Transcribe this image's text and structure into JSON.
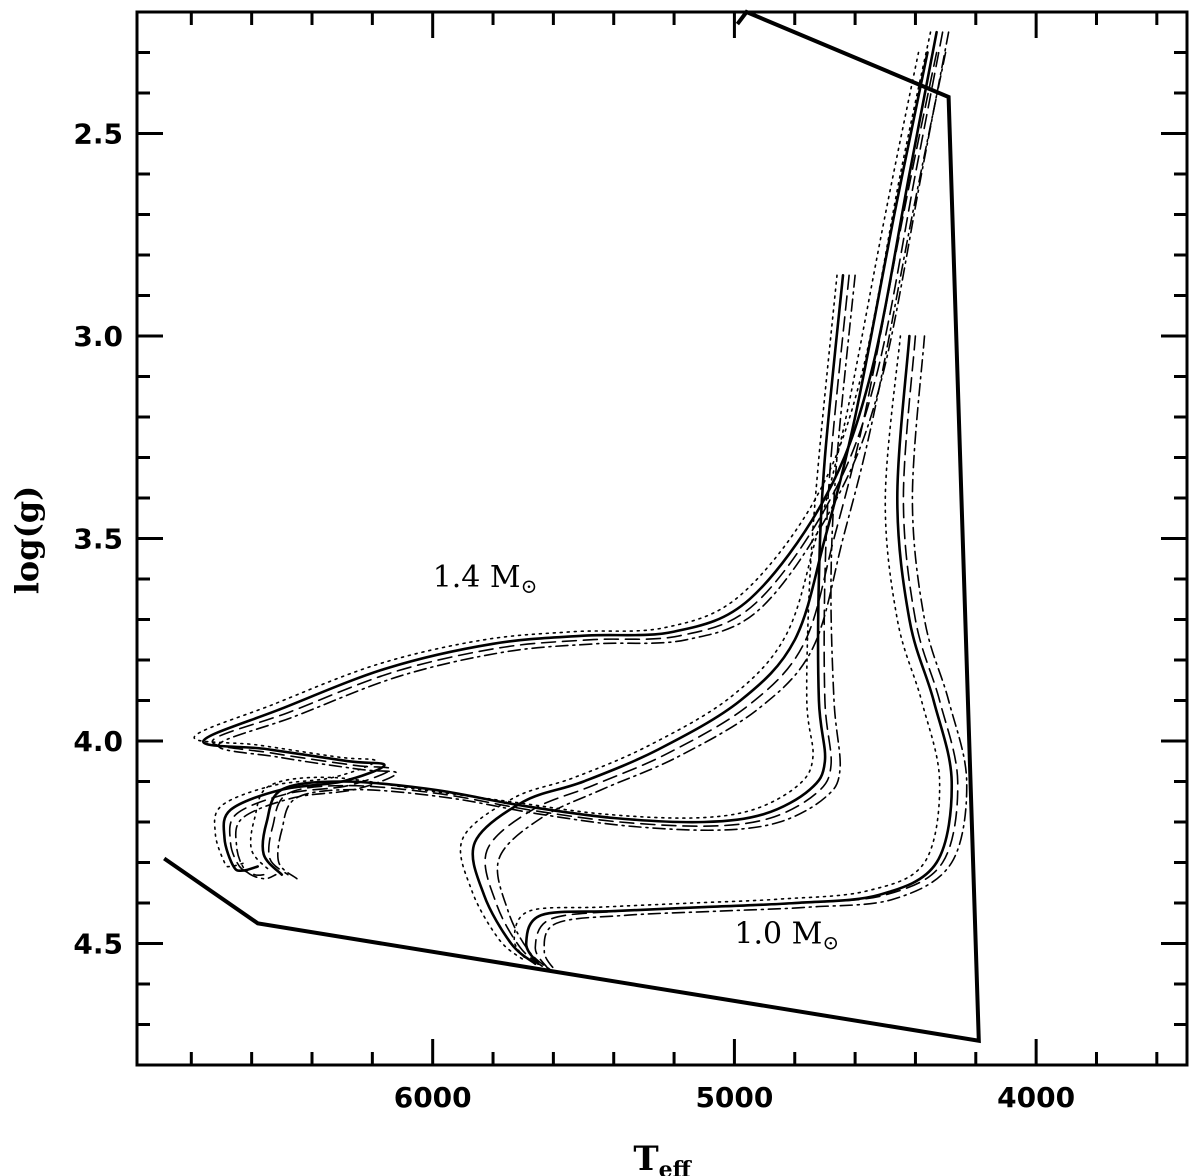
{
  "chart_data": {
    "type": "line",
    "title": "",
    "xlabel": "T",
    "xlabel_sub": "eff",
    "ylabel": "log(g)",
    "xlim": [
      6980,
      3500
    ],
    "ylim": [
      2.2,
      4.8
    ],
    "x_reversed": true,
    "y_reversed": true,
    "x_ticks": [
      6000,
      5000,
      4000
    ],
    "x_minor_step": 200,
    "y_ticks": [
      2.5,
      3.0,
      3.5,
      4.0,
      4.5
    ],
    "y_minor_step": 0.1,
    "grid": false,
    "boundary": [
      [
        6890,
        4.29
      ],
      [
        6580,
        4.45
      ],
      [
        4190,
        4.74
      ],
      [
        4290,
        2.41
      ],
      [
        4960,
        2.2
      ],
      [
        4990,
        2.23
      ]
    ],
    "annotations": [
      {
        "text": "1.4 M",
        "sub": "⊙",
        "x": 6000,
        "y": 3.62
      },
      {
        "text": "1.0 M",
        "sub": "⊙",
        "x": 5000,
        "y": 4.5
      }
    ],
    "series": [
      {
        "style": "solid",
        "points": [
          [
            4330,
            2.25
          ],
          [
            4420,
            2.6
          ],
          [
            4550,
            3.1
          ],
          [
            4700,
            3.4
          ],
          [
            4950,
            3.65
          ],
          [
            5200,
            3.73
          ],
          [
            5500,
            3.74
          ],
          [
            5800,
            3.76
          ],
          [
            6150,
            3.82
          ],
          [
            6500,
            3.92
          ],
          [
            6760,
            4.0
          ],
          [
            6550,
            4.02
          ],
          [
            6280,
            4.05
          ],
          [
            6160,
            4.06
          ],
          [
            6300,
            4.1
          ],
          [
            6500,
            4.12
          ],
          [
            6670,
            4.17
          ],
          [
            6690,
            4.24
          ],
          [
            6660,
            4.31
          ],
          [
            6630,
            4.32
          ],
          [
            6580,
            4.31
          ]
        ]
      },
      {
        "style": "dashed",
        "points": [
          [
            4310,
            2.25
          ],
          [
            4400,
            2.6
          ],
          [
            4530,
            3.1
          ],
          [
            4680,
            3.4
          ],
          [
            4930,
            3.66
          ],
          [
            5180,
            3.74
          ],
          [
            5480,
            3.75
          ],
          [
            5780,
            3.77
          ],
          [
            6130,
            3.83
          ],
          [
            6480,
            3.93
          ],
          [
            6730,
            4.0
          ],
          [
            6530,
            4.03
          ],
          [
            6260,
            4.06
          ],
          [
            6140,
            4.07
          ],
          [
            6280,
            4.11
          ],
          [
            6480,
            4.13
          ],
          [
            6650,
            4.18
          ],
          [
            6670,
            4.25
          ],
          [
            6640,
            4.31
          ],
          [
            6590,
            4.33
          ],
          [
            6560,
            4.33
          ]
        ]
      },
      {
        "style": "dotted",
        "points": [
          [
            4350,
            2.25
          ],
          [
            4450,
            2.6
          ],
          [
            4580,
            3.1
          ],
          [
            4730,
            3.4
          ],
          [
            4980,
            3.64
          ],
          [
            5230,
            3.72
          ],
          [
            5530,
            3.73
          ],
          [
            5830,
            3.75
          ],
          [
            6180,
            3.81
          ],
          [
            6530,
            3.91
          ],
          [
            6790,
            3.99
          ],
          [
            6580,
            4.01
          ],
          [
            6310,
            4.04
          ],
          [
            6190,
            4.05
          ],
          [
            6330,
            4.09
          ],
          [
            6530,
            4.11
          ],
          [
            6700,
            4.16
          ],
          [
            6720,
            4.23
          ],
          [
            6690,
            4.3
          ],
          [
            6670,
            4.31
          ],
          [
            6620,
            4.3
          ]
        ]
      },
      {
        "style": "dashdot",
        "points": [
          [
            4290,
            2.25
          ],
          [
            4380,
            2.6
          ],
          [
            4510,
            3.1
          ],
          [
            4660,
            3.4
          ],
          [
            4910,
            3.67
          ],
          [
            5160,
            3.75
          ],
          [
            5460,
            3.76
          ],
          [
            5760,
            3.78
          ],
          [
            6110,
            3.84
          ],
          [
            6460,
            3.94
          ],
          [
            6710,
            4.01
          ],
          [
            6510,
            4.04
          ],
          [
            6240,
            4.07
          ],
          [
            6120,
            4.08
          ],
          [
            6260,
            4.12
          ],
          [
            6460,
            4.14
          ],
          [
            6630,
            4.19
          ],
          [
            6650,
            4.26
          ],
          [
            6620,
            4.32
          ],
          [
            6560,
            4.34
          ],
          [
            6520,
            4.33
          ]
        ]
      },
      {
        "style": "solid",
        "points": [
          [
            4360,
            2.3
          ],
          [
            4470,
            2.7
          ],
          [
            4600,
            3.2
          ],
          [
            4700,
            3.5
          ],
          [
            4800,
            3.75
          ],
          [
            4980,
            3.9
          ],
          [
            5250,
            4.02
          ],
          [
            5500,
            4.1
          ],
          [
            5700,
            4.15
          ],
          [
            5860,
            4.25
          ],
          [
            5830,
            4.38
          ],
          [
            5740,
            4.5
          ],
          [
            5660,
            4.55
          ]
        ]
      },
      {
        "style": "dashed",
        "points": [
          [
            4330,
            2.3
          ],
          [
            4440,
            2.7
          ],
          [
            4570,
            3.2
          ],
          [
            4670,
            3.5
          ],
          [
            4770,
            3.76
          ],
          [
            4950,
            3.91
          ],
          [
            5220,
            4.03
          ],
          [
            5470,
            4.11
          ],
          [
            5670,
            4.17
          ],
          [
            5820,
            4.27
          ],
          [
            5790,
            4.4
          ],
          [
            5710,
            4.51
          ],
          [
            5630,
            4.56
          ]
        ]
      },
      {
        "style": "dotted",
        "points": [
          [
            4390,
            2.3
          ],
          [
            4500,
            2.7
          ],
          [
            4630,
            3.2
          ],
          [
            4730,
            3.5
          ],
          [
            4830,
            3.74
          ],
          [
            5010,
            3.89
          ],
          [
            5280,
            4.01
          ],
          [
            5530,
            4.09
          ],
          [
            5730,
            4.14
          ],
          [
            5900,
            4.24
          ],
          [
            5870,
            4.37
          ],
          [
            5780,
            4.49
          ],
          [
            5700,
            4.54
          ]
        ]
      },
      {
        "style": "dashdot",
        "points": [
          [
            4300,
            2.3
          ],
          [
            4410,
            2.7
          ],
          [
            4540,
            3.2
          ],
          [
            4640,
            3.5
          ],
          [
            4740,
            3.77
          ],
          [
            4920,
            3.92
          ],
          [
            5190,
            4.04
          ],
          [
            5440,
            4.12
          ],
          [
            5640,
            4.19
          ],
          [
            5780,
            4.29
          ],
          [
            5750,
            4.42
          ],
          [
            5680,
            4.52
          ],
          [
            5600,
            4.57
          ]
        ]
      },
      {
        "style": "solid",
        "points": [
          [
            4640,
            2.85
          ],
          [
            4700,
            3.3
          ],
          [
            4720,
            3.6
          ],
          [
            4720,
            3.9
          ],
          [
            4700,
            4.05
          ],
          [
            4750,
            4.12
          ],
          [
            4900,
            4.18
          ],
          [
            5100,
            4.2
          ],
          [
            5400,
            4.19
          ],
          [
            5700,
            4.16
          ],
          [
            6000,
            4.12
          ],
          [
            6300,
            4.1
          ],
          [
            6500,
            4.12
          ],
          [
            6550,
            4.2
          ],
          [
            6560,
            4.28
          ],
          [
            6500,
            4.33
          ]
        ]
      },
      {
        "style": "dashed",
        "points": [
          [
            4620,
            2.85
          ],
          [
            4680,
            3.3
          ],
          [
            4700,
            3.6
          ],
          [
            4700,
            3.9
          ],
          [
            4680,
            4.06
          ],
          [
            4730,
            4.13
          ],
          [
            4880,
            4.19
          ],
          [
            5080,
            4.21
          ],
          [
            5380,
            4.2
          ],
          [
            5680,
            4.17
          ],
          [
            5980,
            4.13
          ],
          [
            6280,
            4.11
          ],
          [
            6480,
            4.13
          ],
          [
            6530,
            4.21
          ],
          [
            6540,
            4.29
          ],
          [
            6480,
            4.33
          ]
        ]
      },
      {
        "style": "dotted",
        "points": [
          [
            4660,
            2.85
          ],
          [
            4720,
            3.3
          ],
          [
            4750,
            3.6
          ],
          [
            4760,
            3.9
          ],
          [
            4740,
            4.04
          ],
          [
            4790,
            4.11
          ],
          [
            4940,
            4.17
          ],
          [
            5140,
            4.19
          ],
          [
            5440,
            4.18
          ],
          [
            5740,
            4.15
          ],
          [
            6040,
            4.12
          ],
          [
            6340,
            4.09
          ],
          [
            6540,
            4.11
          ],
          [
            6590,
            4.19
          ],
          [
            6600,
            4.27
          ],
          [
            6540,
            4.32
          ]
        ]
      },
      {
        "style": "dashdot",
        "points": [
          [
            4600,
            2.85
          ],
          [
            4660,
            3.3
          ],
          [
            4680,
            3.6
          ],
          [
            4670,
            3.9
          ],
          [
            4650,
            4.07
          ],
          [
            4700,
            4.14
          ],
          [
            4850,
            4.2
          ],
          [
            5050,
            4.22
          ],
          [
            5350,
            4.21
          ],
          [
            5650,
            4.18
          ],
          [
            5950,
            4.14
          ],
          [
            6250,
            4.12
          ],
          [
            6450,
            4.14
          ],
          [
            6500,
            4.22
          ],
          [
            6510,
            4.3
          ],
          [
            6450,
            4.34
          ]
        ]
      },
      {
        "style": "solid",
        "points": [
          [
            4420,
            3.0
          ],
          [
            4460,
            3.4
          ],
          [
            4420,
            3.7
          ],
          [
            4340,
            3.9
          ],
          [
            4280,
            4.1
          ],
          [
            4330,
            4.3
          ],
          [
            4520,
            4.38
          ],
          [
            4800,
            4.4
          ],
          [
            5100,
            4.41
          ],
          [
            5400,
            4.42
          ],
          [
            5640,
            4.43
          ],
          [
            5690,
            4.5
          ],
          [
            5650,
            4.55
          ]
        ]
      },
      {
        "style": "dashed",
        "points": [
          [
            4400,
            3.0
          ],
          [
            4440,
            3.4
          ],
          [
            4400,
            3.7
          ],
          [
            4320,
            3.9
          ],
          [
            4260,
            4.1
          ],
          [
            4310,
            4.3
          ],
          [
            4500,
            4.38
          ],
          [
            4780,
            4.4
          ],
          [
            5080,
            4.41
          ],
          [
            5380,
            4.42
          ],
          [
            5610,
            4.44
          ],
          [
            5660,
            4.51
          ],
          [
            5620,
            4.56
          ]
        ]
      },
      {
        "style": "dotted",
        "points": [
          [
            4450,
            3.0
          ],
          [
            4500,
            3.4
          ],
          [
            4460,
            3.7
          ],
          [
            4380,
            3.9
          ],
          [
            4320,
            4.1
          ],
          [
            4370,
            4.3
          ],
          [
            4560,
            4.37
          ],
          [
            4840,
            4.39
          ],
          [
            5140,
            4.4
          ],
          [
            5440,
            4.41
          ],
          [
            5680,
            4.42
          ],
          [
            5730,
            4.49
          ],
          [
            5690,
            4.54
          ]
        ]
      },
      {
        "style": "dashdot",
        "points": [
          [
            4370,
            3.0
          ],
          [
            4410,
            3.4
          ],
          [
            4370,
            3.7
          ],
          [
            4290,
            3.9
          ],
          [
            4230,
            4.1
          ],
          [
            4280,
            4.3
          ],
          [
            4470,
            4.39
          ],
          [
            4750,
            4.41
          ],
          [
            5050,
            4.42
          ],
          [
            5350,
            4.43
          ],
          [
            5590,
            4.45
          ],
          [
            5630,
            4.52
          ],
          [
            5590,
            4.57
          ]
        ]
      }
    ]
  }
}
